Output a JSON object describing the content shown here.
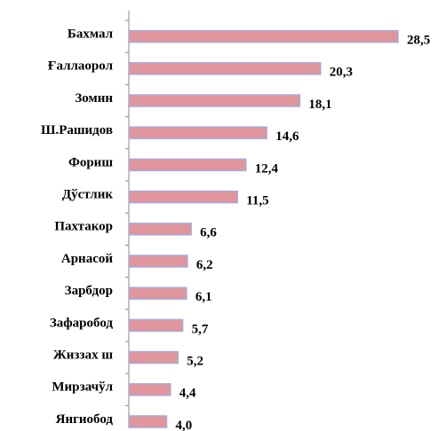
{
  "chart_data": {
    "type": "bar",
    "orientation": "horizontal",
    "categories": [
      "Бахмал",
      "Ғаллаорол",
      "Зомин",
      "Ш.Рашидов",
      "Фориш",
      "Дўстлик",
      "Пахтакор",
      "Арнасой",
      "Зарбдор",
      "Зафаробод",
      "Жиззах ш",
      "Мирзачўл",
      "Янгиобод"
    ],
    "values": [
      28.5,
      20.3,
      18.1,
      14.6,
      12.4,
      11.5,
      6.6,
      6.2,
      6.1,
      5.7,
      5.2,
      4.4,
      4.0
    ],
    "value_labels": [
      "28,5",
      "20,3",
      "18,1",
      "14,6",
      "12,4",
      "11,5",
      "6,6",
      "6,2",
      "6,1",
      "5,7",
      "5,2",
      "4,4",
      "4,0"
    ],
    "color": "#e0959a",
    "edge_color": "#a9a9dc"
  }
}
